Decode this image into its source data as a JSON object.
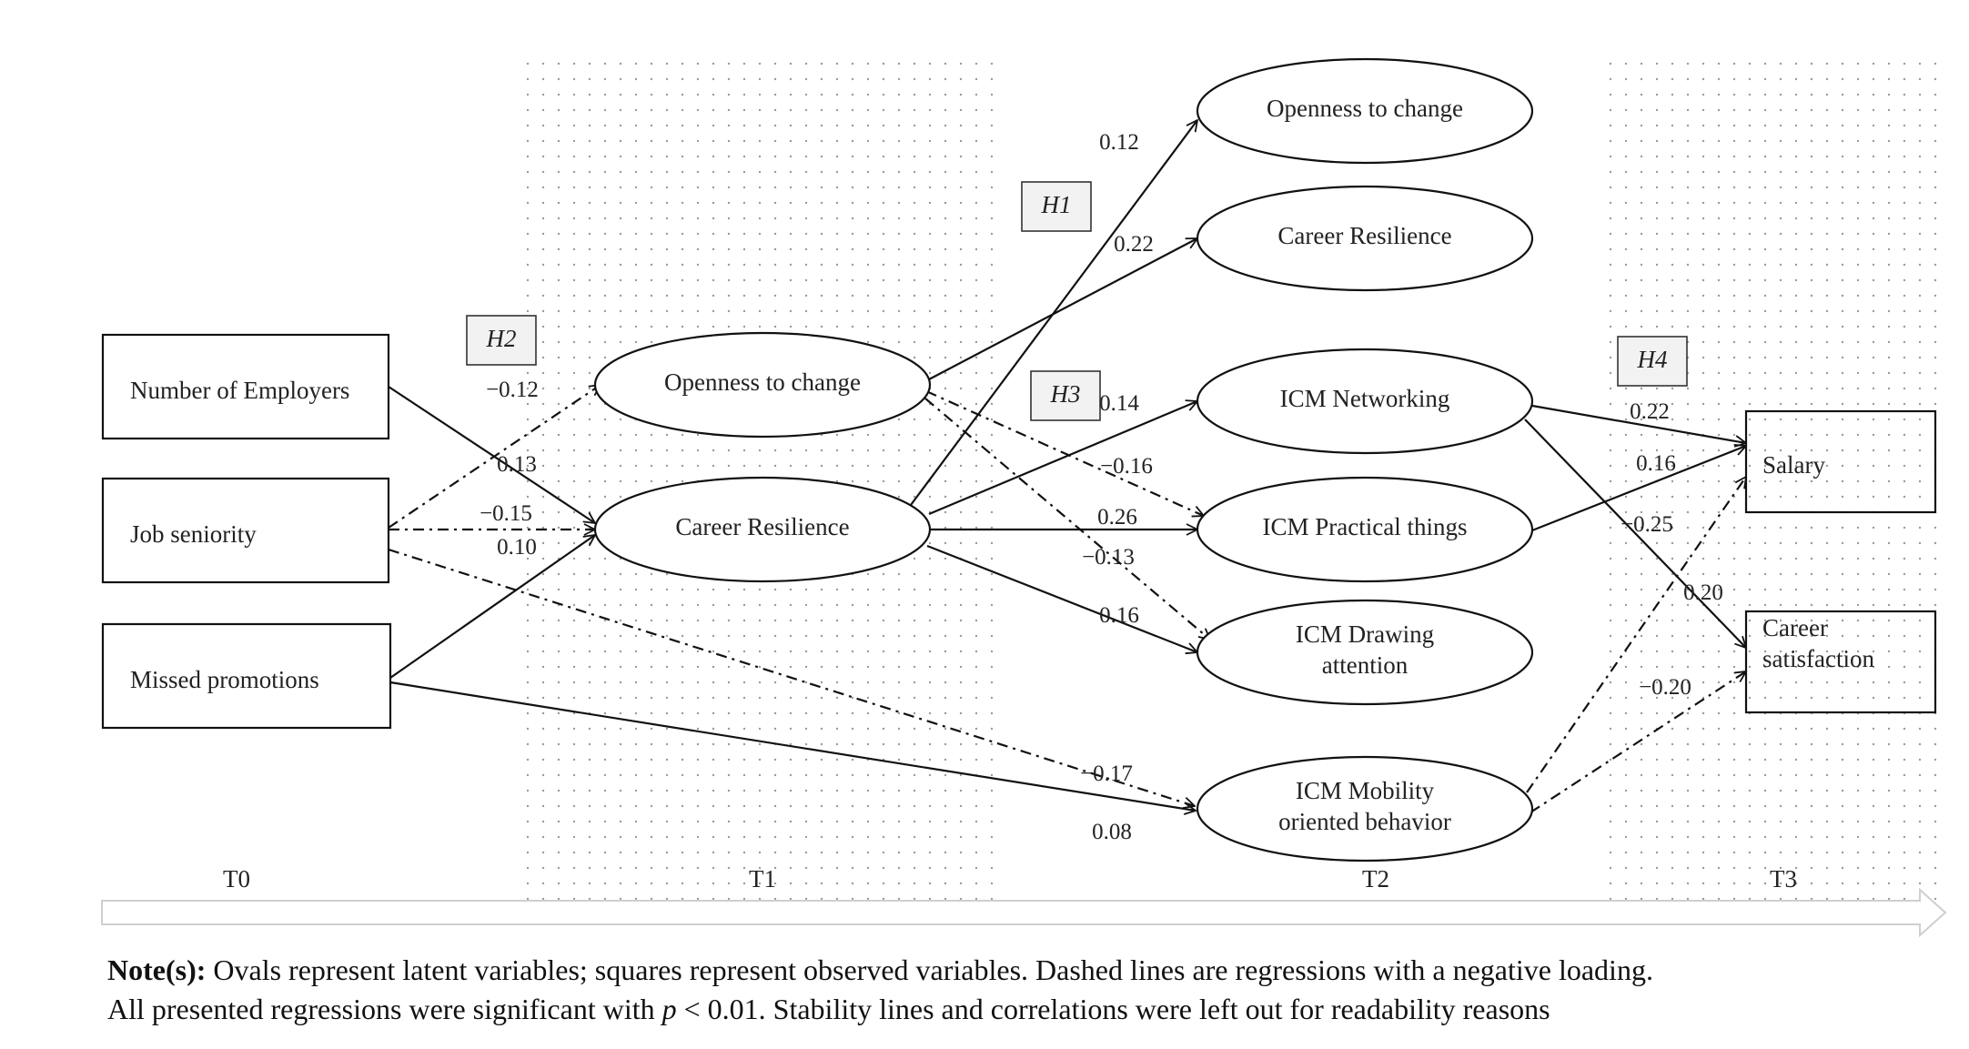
{
  "observed": [
    {
      "id": "employers",
      "label": "Number of Employers"
    },
    {
      "id": "seniority",
      "label": "Job seniority"
    },
    {
      "id": "missed",
      "label": "Missed promotions"
    },
    {
      "id": "salary",
      "label": "Salary"
    },
    {
      "id": "satisfaction",
      "label": [
        "Career",
        "satisfaction"
      ]
    }
  ],
  "latent": [
    {
      "id": "open1",
      "label": "Openness to change"
    },
    {
      "id": "res1",
      "label": "Career Resilience"
    },
    {
      "id": "open2",
      "label": "Openness to change"
    },
    {
      "id": "res2",
      "label": "Career Resilience"
    },
    {
      "id": "net",
      "label": "ICM Networking"
    },
    {
      "id": "prac",
      "label": "ICM Practical things"
    },
    {
      "id": "draw",
      "label": [
        "ICM Drawing",
        "attention"
      ]
    },
    {
      "id": "mob",
      "label": [
        "ICM Mobility",
        "oriented behavior"
      ]
    }
  ],
  "hypotheses": [
    {
      "id": "h1",
      "label": "H1"
    },
    {
      "id": "h2",
      "label": "H2"
    },
    {
      "id": "h3",
      "label": "H3"
    },
    {
      "id": "h4",
      "label": "H4"
    }
  ],
  "paths": [
    {
      "from": "employers",
      "to": "res1",
      "coef": "0.13",
      "negative": false
    },
    {
      "from": "seniority",
      "to": "open1",
      "coef": "−0.12",
      "negative": true
    },
    {
      "from": "seniority",
      "to": "res1",
      "coef": "−0.15",
      "negative": true
    },
    {
      "from": "missed",
      "to": "res1",
      "coef": "0.10",
      "negative": false
    },
    {
      "from": "seniority",
      "to": "mob",
      "coef": "−0.17",
      "negative": true
    },
    {
      "from": "missed",
      "to": "mob",
      "coef": "0.08",
      "negative": false
    },
    {
      "from": "res1",
      "to": "open2",
      "coef": "0.12",
      "negative": false
    },
    {
      "from": "open1",
      "to": "res2",
      "coef": "0.22",
      "negative": false
    },
    {
      "from": "res1",
      "to": "net",
      "coef": "0.14",
      "negative": false
    },
    {
      "from": "open1",
      "to": "prac",
      "coef": "−0.16",
      "negative": true
    },
    {
      "from": "res1",
      "to": "prac",
      "coef": "0.26",
      "negative": false
    },
    {
      "from": "open1",
      "to": "draw",
      "coef": "−0.13",
      "negative": true
    },
    {
      "from": "res1",
      "to": "draw",
      "coef": "0.16",
      "negative": false
    },
    {
      "from": "net",
      "to": "salary",
      "coef": "0.22",
      "negative": false
    },
    {
      "from": "prac",
      "to": "salary",
      "coef": "0.16",
      "negative": false
    },
    {
      "from": "mob",
      "to": "salary",
      "coef": "−0.25",
      "negative": true
    },
    {
      "from": "net",
      "to": "satisfaction",
      "coef": "0.20",
      "negative": false
    },
    {
      "from": "mob",
      "to": "satisfaction",
      "coef": "−0.20",
      "negative": true
    }
  ],
  "timepoints": [
    "T0",
    "T1",
    "T2",
    "T3"
  ],
  "note": {
    "label": "Note(s):",
    "line1": "Ovals represent latent variables; squares represent observed variables. Dashed lines are regressions with a negative loading.",
    "line2_before": "All presented regressions were significant with ",
    "line2_p": "p",
    "line2_after": " < 0.01. Stability lines and correlations were left out for readability reasons"
  }
}
